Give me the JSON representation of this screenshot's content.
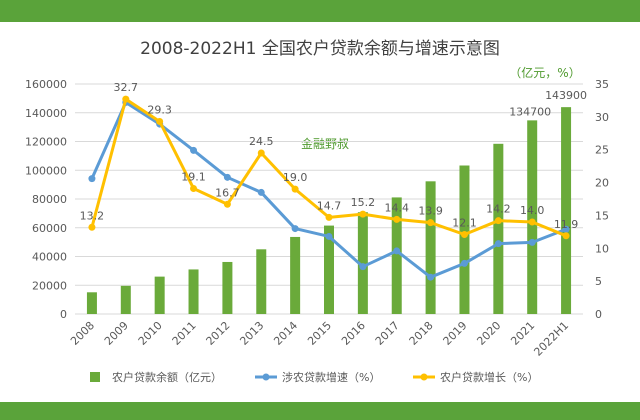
{
  "chart_data": {
    "type": "bar",
    "title": "2008-2022H1 全国农户贷款余额与增速示意图",
    "watermark": "金融野叔",
    "right_axis_unit": "（亿元，%）",
    "categories": [
      "2008",
      "2009",
      "2010",
      "2011",
      "2012",
      "2013",
      "2014",
      "2015",
      "2016",
      "2017",
      "2018",
      "2019",
      "2020",
      "2021",
      "2022H1"
    ],
    "left_axis": {
      "min": 0,
      "max": 160000,
      "step": 20000,
      "ticks": [
        "0",
        "20000",
        "40000",
        "60000",
        "80000",
        "100000",
        "120000",
        "140000",
        "160000"
      ]
    },
    "right_axis": {
      "min": 0,
      "max": 35,
      "step": 5,
      "ticks": [
        "0",
        "5",
        "10",
        "15",
        "20",
        "25",
        "30",
        "35"
      ]
    },
    "series": [
      {
        "name": "农户贷款余额（亿元）",
        "type": "bar",
        "axis": "left",
        "color": "#6aaa3a",
        "values": [
          15100,
          19600,
          26000,
          31000,
          36200,
          45000,
          53600,
          61500,
          70800,
          81100,
          92300,
          103300,
          118400,
          134700,
          143900
        ],
        "labels": {
          "13": "134700",
          "14": "143900"
        }
      },
      {
        "name": "涉农贷款增速（%）",
        "type": "line",
        "axis": "right",
        "color": "#5b9bd5",
        "values": [
          20.6,
          32.2,
          28.9,
          24.9,
          20.8,
          18.5,
          13.0,
          11.8,
          7.2,
          9.6,
          5.6,
          7.7,
          10.7,
          10.9,
          12.9
        ]
      },
      {
        "name": "农户贷款增长（%）",
        "type": "line",
        "axis": "right",
        "color": "#ffc000",
        "values": [
          13.2,
          32.7,
          29.3,
          19.1,
          16.7,
          24.5,
          19.0,
          14.7,
          15.2,
          14.4,
          13.9,
          12.1,
          14.2,
          14.0,
          11.9
        ],
        "labels": [
          "13.2",
          "32.7",
          "29.3",
          "19.1",
          "16.7",
          "24.5",
          "19.0",
          "14.7",
          "15.2",
          "14.4",
          "13.9",
          "12.1",
          "14.2",
          "14.0",
          "11.9"
        ]
      }
    ],
    "colors": {
      "banner": "#5aa33a",
      "grid": "#d9d9d9",
      "axis_text": "#595959",
      "title": "#404040",
      "watermark": "#4f9a2e"
    },
    "legend_position": "bottom"
  }
}
